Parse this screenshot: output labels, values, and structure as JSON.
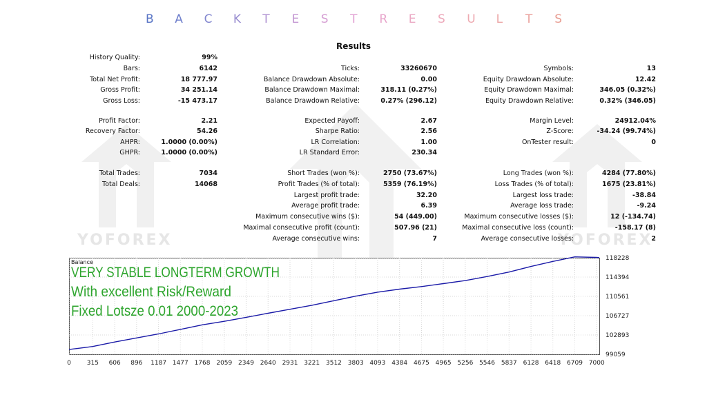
{
  "title_letters": [
    "B",
    "A",
    "C",
    "K",
    "T",
    "E",
    "S",
    "T",
    "R",
    "E",
    "S",
    "U",
    "L",
    "T",
    "S"
  ],
  "title_colors": [
    "#5a76c6",
    "#6f7fcc",
    "#8387cf",
    "#988dd0",
    "#b093d2",
    "#c498d3",
    "#d59ed3",
    "#e2a2d3",
    "#e8a6cc",
    "#eba9c4",
    "#eda9bb",
    "#eeaab1",
    "#eca6a6",
    "#eaa09c",
    "#e89d92"
  ],
  "heading": "Results",
  "watermark_text": "YOFOREX",
  "col1": [
    {
      "label": "History Quality:",
      "value": "99%"
    },
    {
      "label": "Bars:",
      "value": "6142"
    },
    {
      "label": "Total Net Profit:",
      "value": "18 777.97"
    },
    {
      "label": "Gross Profit:",
      "value": "34 251.14"
    },
    {
      "label": "Gross Loss:",
      "value": "-15 473.17"
    },
    {
      "label": "Profit Factor:",
      "value": "2.21"
    },
    {
      "label": "Recovery Factor:",
      "value": "54.26"
    },
    {
      "label": "AHPR:",
      "value": "1.0000 (0.00%)"
    },
    {
      "label": "GHPR:",
      "value": "1.0000 (0.00%)"
    },
    {
      "label": "Total Trades:",
      "value": "7034"
    },
    {
      "label": "Total Deals:",
      "value": "14068"
    }
  ],
  "col2": [
    {
      "label": "Ticks:",
      "value": "33260670"
    },
    {
      "label": "Balance Drawdown Absolute:",
      "value": "0.00"
    },
    {
      "label": "Balance Drawdown Maximal:",
      "value": "318.11 (0.27%)"
    },
    {
      "label": "Balance Drawdown Relative:",
      "value": "0.27% (296.12)"
    },
    {
      "label": "Expected Payoff:",
      "value": "2.67"
    },
    {
      "label": "Sharpe Ratio:",
      "value": "2.56"
    },
    {
      "label": "LR Correlation:",
      "value": "1.00"
    },
    {
      "label": "LR Standard Error:",
      "value": "230.34"
    },
    {
      "label": "Short Trades (won %):",
      "value": "2750 (73.67%)"
    },
    {
      "label": "Profit Trades (% of total):",
      "value": "5359 (76.19%)"
    },
    {
      "label": "Largest profit trade:",
      "value": "32.20"
    },
    {
      "label": "Average profit trade:",
      "value": "6.39"
    },
    {
      "label": "Maximum consecutive wins ($):",
      "value": "54 (449.00)"
    },
    {
      "label": "Maximal consecutive profit (count):",
      "value": "507.96 (21)"
    },
    {
      "label": "Average consecutive wins:",
      "value": "7"
    }
  ],
  "col3": [
    {
      "label": "Symbols:",
      "value": "13"
    },
    {
      "label": "Equity Drawdown Absolute:",
      "value": "12.42"
    },
    {
      "label": "Equity Drawdown Maximal:",
      "value": "346.05 (0.32%)"
    },
    {
      "label": "Equity Drawdown Relative:",
      "value": "0.32% (346.05)"
    },
    {
      "label": "Margin Level:",
      "value": "24912.04%"
    },
    {
      "label": "Z-Score:",
      "value": "-34.24 (99.74%)"
    },
    {
      "label": "OnTester result:",
      "value": "0"
    },
    {
      "label": "Long Trades (won %):",
      "value": "4284 (77.80%)"
    },
    {
      "label": "Loss Trades (% of total):",
      "value": "1675 (23.81%)"
    },
    {
      "label": "Largest loss trade:",
      "value": "-38.84"
    },
    {
      "label": "Average loss trade:",
      "value": "-9.24"
    },
    {
      "label": "Maximum consecutive losses ($):",
      "value": "12 (-134.74)"
    },
    {
      "label": "Maximal consecutive loss (count):",
      "value": "-158.17 (8)"
    },
    {
      "label": "Average consecutive losses:",
      "value": "2"
    }
  ],
  "chart": {
    "legend_label": "Balance",
    "overlay_lines": [
      "VERY STABLE LONGTERM GROWTH",
      "With excellent Risk/Reward",
      "Fixed Lotsze 0.01 2000-2023"
    ],
    "overlay_color": "#2ea52e",
    "line_color": "#1b1ba8"
  },
  "chart_data": {
    "type": "line",
    "x_ticks": [
      "0",
      "315",
      "606",
      "896",
      "1187",
      "1477",
      "1768",
      "2059",
      "2349",
      "2640",
      "2931",
      "3221",
      "3512",
      "3803",
      "4093",
      "4384",
      "4675",
      "4965",
      "5256",
      "5546",
      "5837",
      "6128",
      "6418",
      "6709",
      "7000"
    ],
    "y_ticks": [
      "118228",
      "114394",
      "110561",
      "106727",
      "102893",
      "99059"
    ],
    "xlim": [
      0,
      7034
    ],
    "ylim": [
      99059,
      118228
    ],
    "series": [
      {
        "x": [
          0,
          315,
          606,
          896,
          1187,
          1477,
          1768,
          2059,
          2349,
          2640,
          2931,
          3221,
          3512,
          3803,
          4093,
          4384,
          4675,
          4965,
          5256,
          5546,
          5837,
          6128,
          6418,
          6709,
          7000,
          7034
        ],
        "values": [
          100000,
          100600,
          101500,
          102300,
          103100,
          104000,
          104900,
          105600,
          106400,
          107200,
          108000,
          108800,
          109700,
          110600,
          111400,
          112000,
          112500,
          113100,
          113700,
          114500,
          115400,
          116500,
          117500,
          118400,
          118300,
          118250
        ]
      }
    ]
  }
}
